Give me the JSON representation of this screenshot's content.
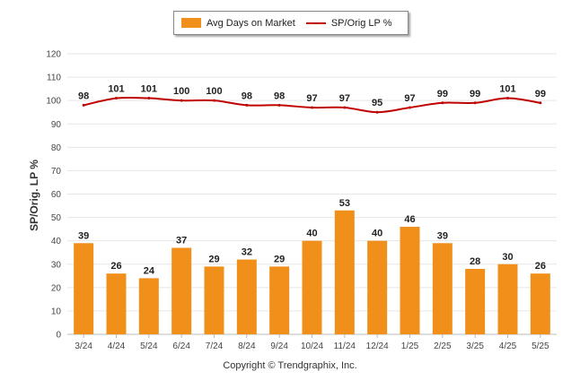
{
  "chart_data": {
    "type": "bar",
    "categories": [
      "3/24",
      "4/24",
      "5/24",
      "6/24",
      "7/24",
      "8/24",
      "9/24",
      "10/24",
      "11/24",
      "12/24",
      "1/25",
      "2/25",
      "3/25",
      "4/25",
      "5/25"
    ],
    "series": [
      {
        "name": "Avg Days on Market",
        "type": "bar",
        "color": "#F0901A",
        "values": [
          39,
          26,
          24,
          37,
          29,
          32,
          29,
          40,
          53,
          40,
          46,
          39,
          28,
          30,
          26
        ]
      },
      {
        "name": "SP/Orig LP %",
        "type": "line",
        "color": "#C00000",
        "values": [
          98,
          101,
          101,
          100,
          100,
          98,
          98,
          97,
          97,
          95,
          97,
          99,
          99,
          101,
          99
        ]
      }
    ],
    "ylabel": "SP/Orig. LP %",
    "ylim": [
      0,
      120
    ],
    "yticks": [
      0,
      10,
      20,
      30,
      40,
      50,
      60,
      70,
      80,
      90,
      100,
      110,
      120
    ],
    "grid": true,
    "legend_position": "top-center"
  },
  "legend": {
    "bar_label": "Avg Days on Market",
    "line_label": "SP/Orig LP %"
  },
  "footer": {
    "copyright": "Copyright © Trendgraphix, Inc."
  }
}
